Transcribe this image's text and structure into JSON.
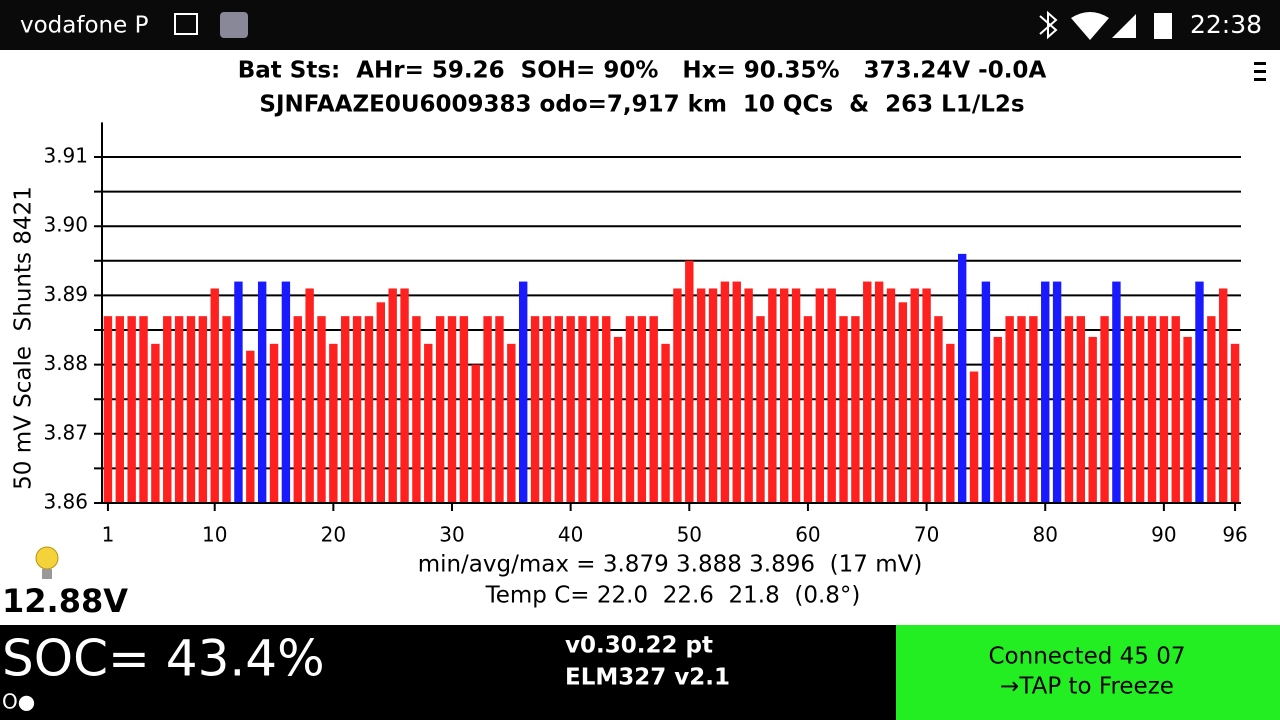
{
  "status_bar": {
    "carrier": "vodafone P",
    "time": "22:38"
  },
  "header": {
    "line1": "Bat Sts:  AHr= 59.26  SOH= 90%   Hx= 90.35%   373.24V -0.0A",
    "line2": "SJNFAAZE0U6009383 odo=7,917 km  10 QCs  &  263 L1/L2s"
  },
  "chart_data": {
    "type": "bar",
    "y_label": "50 mV Scale  Shunts 8421",
    "x": [
      1,
      2,
      3,
      4,
      5,
      6,
      7,
      8,
      9,
      10,
      11,
      12,
      13,
      14,
      15,
      16,
      17,
      18,
      19,
      20,
      21,
      22,
      23,
      24,
      25,
      26,
      27,
      28,
      29,
      30,
      31,
      32,
      33,
      34,
      35,
      36,
      37,
      38,
      39,
      40,
      41,
      42,
      43,
      44,
      45,
      46,
      47,
      48,
      49,
      50,
      51,
      52,
      53,
      54,
      55,
      56,
      57,
      58,
      59,
      60,
      61,
      62,
      63,
      64,
      65,
      66,
      67,
      68,
      69,
      70,
      71,
      72,
      73,
      74,
      75,
      76,
      77,
      78,
      79,
      80,
      81,
      82,
      83,
      84,
      85,
      86,
      87,
      88,
      89,
      90,
      91,
      92,
      93,
      94,
      95,
      96
    ],
    "values": [
      3.887,
      3.887,
      3.887,
      3.887,
      3.883,
      3.887,
      3.887,
      3.887,
      3.887,
      3.891,
      3.887,
      3.892,
      3.882,
      3.892,
      3.883,
      3.892,
      3.887,
      3.891,
      3.887,
      3.883,
      3.887,
      3.887,
      3.887,
      3.889,
      3.891,
      3.891,
      3.887,
      3.883,
      3.887,
      3.887,
      3.887,
      3.88,
      3.887,
      3.887,
      3.883,
      3.892,
      3.887,
      3.887,
      3.887,
      3.887,
      3.887,
      3.887,
      3.887,
      3.884,
      3.887,
      3.887,
      3.887,
      3.883,
      3.891,
      3.895,
      3.891,
      3.891,
      3.892,
      3.892,
      3.891,
      3.887,
      3.891,
      3.891,
      3.891,
      3.887,
      3.891,
      3.891,
      3.887,
      3.887,
      3.892,
      3.892,
      3.891,
      3.889,
      3.891,
      3.891,
      3.887,
      3.883,
      3.896,
      3.879,
      3.892,
      3.884,
      3.887,
      3.887,
      3.887,
      3.892,
      3.892,
      3.887,
      3.887,
      3.884,
      3.887,
      3.892,
      3.887,
      3.887,
      3.887,
      3.887,
      3.887,
      3.884,
      3.892,
      3.887,
      3.891,
      3.883
    ],
    "color": "#ff2020",
    "shunts": [
      12,
      14,
      16,
      36,
      73,
      75,
      80,
      81,
      86,
      93
    ],
    "shunt_color": "#1a1aff",
    "xlim": [
      0.5,
      96.5
    ],
    "xticks": [
      1,
      10,
      20,
      30,
      40,
      50,
      60,
      70,
      80,
      90,
      96
    ],
    "ylim": [
      3.86,
      3.915
    ],
    "yticks": [
      3.86,
      3.87,
      3.88,
      3.89,
      {
        "value": 3.9,
        "label": "3.90"
      },
      3.91
    ],
    "minor_yticks": [
      3.865,
      3.875,
      3.885,
      3.895,
      3.905
    ],
    "grid": true
  },
  "stats": {
    "minmax": "min/avg/max = 3.879 3.888 3.896  (17 mV)",
    "temp": "Temp C= 22.0  22.6  21.8  (0.8°)",
    "aux_voltage": "12.88V"
  },
  "footer": {
    "soc": "SOC= 43.4%",
    "indicator": "O●",
    "version": "v0.30.22 pt",
    "adapter": "ELM327 v2.1",
    "connection": "Connected 45 07",
    "action": "→TAP to Freeze"
  }
}
